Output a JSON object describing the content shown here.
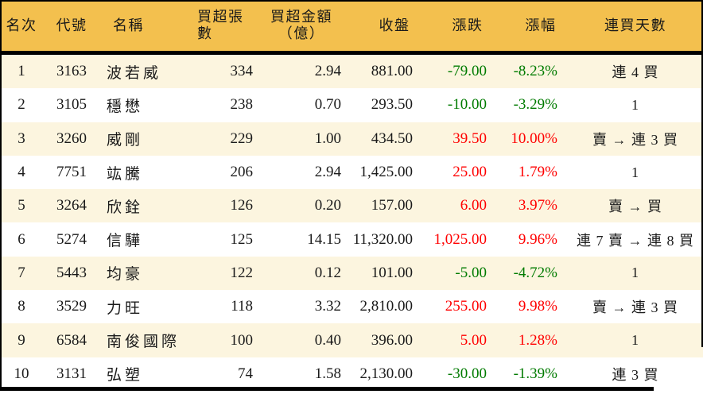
{
  "colors": {
    "header_bg": "#F3C04E",
    "row_bg": "#FFFFFF",
    "row_alt_bg": "#FCF5DF",
    "up": "#FF0000",
    "down": "#007B00",
    "text": "#1A1A1A",
    "border": "#000000"
  },
  "chart_data": {
    "type": "table",
    "legend_note": "red = price up, green = price down",
    "columns": [
      {
        "label": "名次"
      },
      {
        "label": "代號"
      },
      {
        "label": "名稱"
      },
      {
        "label": "買超張數"
      },
      {
        "label": "買超金額",
        "label2": "（億）"
      },
      {
        "label": "收盤"
      },
      {
        "label": "漲跌"
      },
      {
        "label": "漲幅"
      },
      {
        "label": "連買天數"
      }
    ],
    "rows": [
      {
        "rank": "1",
        "code": "3163",
        "name": "波若威",
        "volume": "334",
        "amount": "2.94",
        "close": "881.00",
        "change": "-79.00",
        "change_pct": "-8.23%",
        "streak": "連 4 買",
        "direction": "down"
      },
      {
        "rank": "2",
        "code": "3105",
        "name": "穩懋",
        "volume": "238",
        "amount": "0.70",
        "close": "293.50",
        "change": "-10.00",
        "change_pct": "-3.29%",
        "streak": "1",
        "direction": "down"
      },
      {
        "rank": "3",
        "code": "3260",
        "name": "威剛",
        "volume": "229",
        "amount": "1.00",
        "close": "434.50",
        "change": "39.50",
        "change_pct": "10.00%",
        "streak": "賣 → 連 3 買",
        "direction": "up"
      },
      {
        "rank": "4",
        "code": "7751",
        "name": "竑騰",
        "volume": "206",
        "amount": "2.94",
        "close": "1,425.00",
        "change": "25.00",
        "change_pct": "1.79%",
        "streak": "1",
        "direction": "up"
      },
      {
        "rank": "5",
        "code": "3264",
        "name": "欣銓",
        "volume": "126",
        "amount": "0.20",
        "close": "157.00",
        "change": "6.00",
        "change_pct": "3.97%",
        "streak": "賣 → 買",
        "direction": "up"
      },
      {
        "rank": "6",
        "code": "5274",
        "name": "信驊",
        "volume": "125",
        "amount": "14.15",
        "close": "11,320.00",
        "change": "1,025.00",
        "change_pct": "9.96%",
        "streak": "連 7 賣 → 連 8 買",
        "direction": "up"
      },
      {
        "rank": "7",
        "code": "5443",
        "name": "均豪",
        "volume": "122",
        "amount": "0.12",
        "close": "101.00",
        "change": "-5.00",
        "change_pct": "-4.72%",
        "streak": "1",
        "direction": "down"
      },
      {
        "rank": "8",
        "code": "3529",
        "name": "力旺",
        "volume": "118",
        "amount": "3.32",
        "close": "2,810.00",
        "change": "255.00",
        "change_pct": "9.98%",
        "streak": "賣 → 連 3 買",
        "direction": "up"
      },
      {
        "rank": "9",
        "code": "6584",
        "name": "南俊國際",
        "volume": "100",
        "amount": "0.40",
        "close": "396.00",
        "change": "5.00",
        "change_pct": "1.28%",
        "streak": "1",
        "direction": "up"
      },
      {
        "rank": "10",
        "code": "3131",
        "name": "弘塑",
        "volume": "74",
        "amount": "1.58",
        "close": "2,130.00",
        "change": "-30.00",
        "change_pct": "-1.39%",
        "streak": "連 3 買",
        "direction": "down"
      }
    ]
  }
}
